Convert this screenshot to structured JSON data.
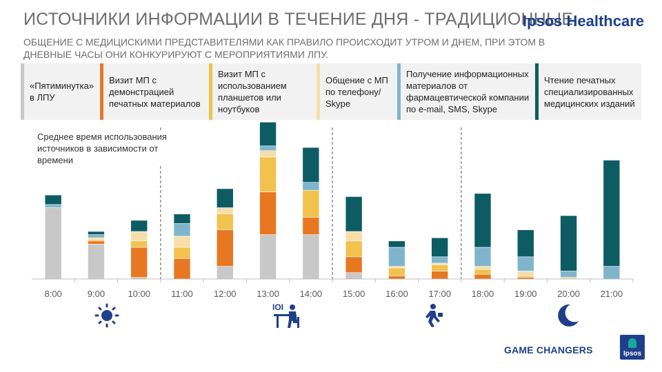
{
  "header": {
    "title": "ИСТОЧНИКИ ИНФОРМАЦИИ В ТЕЧЕНИЕ ДНЯ - ТРАДИЦИОННЫЕ",
    "brand": "Ipsos Healthcare",
    "subtitle": "ОБЩЕНИЕ С МЕДИЦИСКИМИ  ПРЕДСТАВИТЕЛЯМИ КАК ПРАВИЛО ПРОИСХОДИТ УТРОМ И ДНЕМ, ПРИ ЭТОМ В ДНЕВНЫЕ ЧАСЫ ОНИ КОНКУРИРУЮТ С МЕРОПРИЯТИЯМИ ЛПУ."
  },
  "legend": [
    {
      "label": "«Пятиминутка» в ЛПУ",
      "color": "#c8c8c8"
    },
    {
      "label": "Визит МП с демонстрацией печатных материалов",
      "color": "#e87722"
    },
    {
      "label": "Визит МП с использованием планшетов или ноутбуков",
      "color": "#f2c14e"
    },
    {
      "label": "Общение с МП по телефону/ Skype",
      "color": "#f7deaa"
    },
    {
      "label": "Получение информационных материалов от фармацевтической компании по e-mail, SMS, Skype",
      "color": "#7fb5cc"
    },
    {
      "label": "Чтение печатных специализированных медицинских изданий",
      "color": "#0d5c63"
    }
  ],
  "note": "Среднее время использования источников в зависимости от времени",
  "chart_data": {
    "type": "bar",
    "stacked": true,
    "categories": [
      "8:00",
      "9:00",
      "10:00",
      "11:00",
      "12:00",
      "13:00",
      "14:00",
      "15:00",
      "16:00",
      "17:00",
      "18:00",
      "19:00",
      "20:00",
      "21:00"
    ],
    "ylim": [
      0,
      100
    ],
    "series": [
      {
        "name": "«Пятиминутка» в ЛПУ",
        "color": "#c8c8c8",
        "values": [
          45,
          22,
          1,
          0,
          8,
          28,
          28,
          4,
          0,
          0,
          0,
          0,
          0,
          0
        ]
      },
      {
        "name": "Визит МП с демонстрацией печатных материалов",
        "color": "#e87722",
        "values": [
          0,
          2,
          19,
          13,
          23,
          27,
          11,
          10,
          2,
          5,
          3,
          1,
          0,
          0
        ]
      },
      {
        "name": "Визит МП с использованием планшетов или ноутбуков",
        "color": "#f2c14e",
        "values": [
          0,
          1,
          4,
          7,
          10,
          22,
          17,
          10,
          5,
          4,
          3,
          1,
          0,
          0
        ]
      },
      {
        "name": "Общение с МП по телефону/ Skype",
        "color": "#f7deaa",
        "values": [
          0,
          1,
          6,
          7,
          4,
          4,
          0,
          6,
          1,
          1,
          2,
          3,
          1,
          0
        ]
      },
      {
        "name": "Получение информационных материалов от фармацевтической компании по e-mail, SMS, Skype",
        "color": "#7fb5cc",
        "values": [
          2,
          2,
          0,
          8,
          0,
          3,
          5,
          0,
          12,
          4,
          12,
          9,
          4,
          8
        ]
      },
      {
        "name": "Чтение печатных специализированных медицинских изданий",
        "color": "#0d5c63",
        "values": [
          6,
          2,
          7,
          6,
          12,
          15,
          22,
          22,
          4,
          12,
          34,
          17,
          35,
          67
        ]
      }
    ],
    "dividers_after": [
      "10:00",
      "14:00",
      "17:00"
    ],
    "period_icons": [
      {
        "name": "sun-icon",
        "category": "9:00"
      },
      {
        "name": "lunch-icon",
        "category": "13:00",
        "text": "IOI"
      },
      {
        "name": "walking-person-icon",
        "category": "16:30"
      },
      {
        "name": "moon-icon",
        "category": "20:00"
      }
    ]
  },
  "footer": {
    "game_changers": "GAME CHANGERS",
    "logo_text": "Ipsos"
  }
}
